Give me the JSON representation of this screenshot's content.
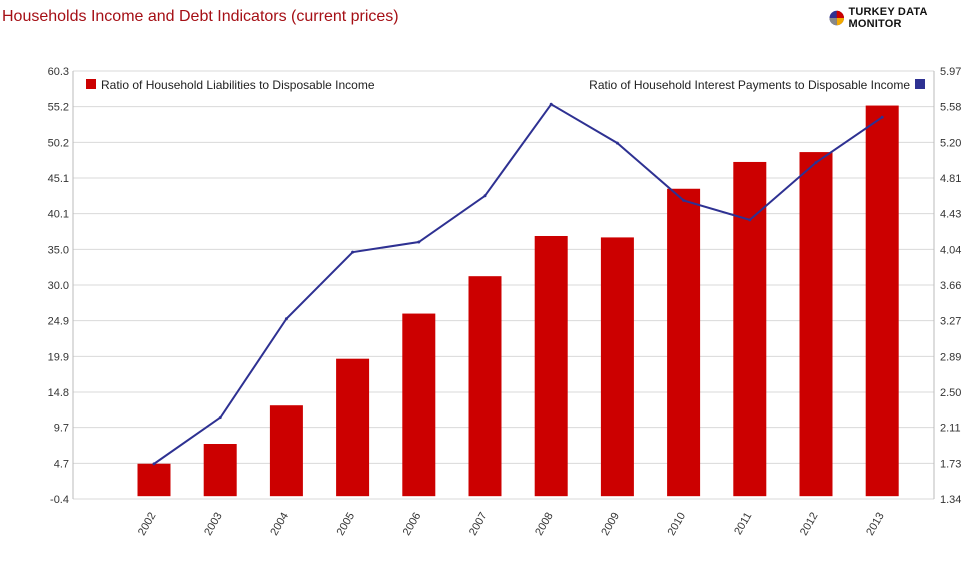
{
  "header": {
    "title": "Households Income and Debt Indicators (current prices)",
    "brand": "TURKEY DATA MONITOR",
    "brand_icon": "pie-logo-icon"
  },
  "colors": {
    "title": "#a50f15",
    "bar": "#cc0000",
    "line": "#2e3192",
    "grid": "#d9d9d9",
    "axis_text": "#333333"
  },
  "chart_data": {
    "type": "bar",
    "categories": [
      "2002",
      "2003",
      "2004",
      "2005",
      "2006",
      "2007",
      "2008",
      "2009",
      "2010",
      "2011",
      "2012",
      "2013"
    ],
    "left_axis": {
      "ticks": [
        "-0.4",
        "4.7",
        "9.7",
        "14.8",
        "19.9",
        "24.9",
        "30.0",
        "35.0",
        "40.1",
        "45.1",
        "50.2",
        "55.2",
        "60.3"
      ],
      "ylim": [
        -0.4,
        60.3
      ]
    },
    "right_axis": {
      "ticks": [
        "1.34",
        "1.73",
        "2.11",
        "2.50",
        "2.89",
        "3.27",
        "3.66",
        "4.04",
        "4.43",
        "4.81",
        "5.20",
        "5.58",
        "5.97"
      ],
      "ylim": [
        1.34,
        5.97
      ]
    },
    "series": [
      {
        "name": "Ratio of Household Liabilities to Disposable Income",
        "type": "bar",
        "axis": "left",
        "values": [
          4.6,
          7.4,
          12.9,
          19.5,
          25.9,
          31.2,
          36.9,
          36.7,
          43.6,
          47.4,
          48.8,
          55.4
        ]
      },
      {
        "name": "Ratio of Household Interest Payments to Disposable Income",
        "type": "line",
        "axis": "right",
        "values": [
          1.72,
          2.22,
          3.29,
          4.01,
          4.12,
          4.62,
          5.61,
          5.19,
          4.57,
          4.36,
          4.98,
          5.47
        ]
      }
    ],
    "legend": [
      "top-left",
      "top-right"
    ],
    "grid": true
  }
}
